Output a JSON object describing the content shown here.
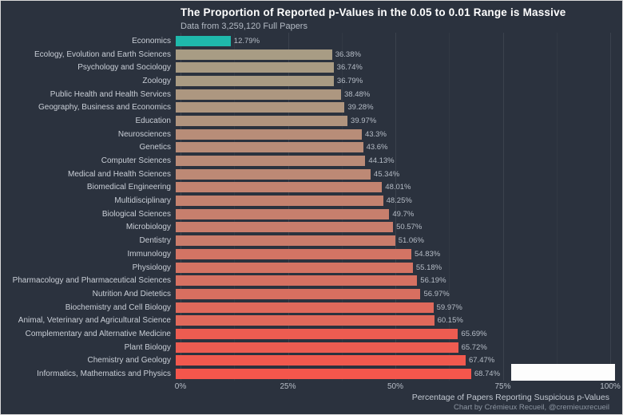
{
  "title": "The Proportion of Reported p-Values in the 0.05 to 0.01 Range is Massive",
  "subtitle": "Data from 3,259,120 Full Papers",
  "caption": "Chart by Crémieux Recueil, @cremieuxrecueil",
  "axis": {
    "label": "Percentage of Papers Reporting Suspicious p-Values",
    "ticks": [
      "0%",
      "25%",
      "50%",
      "75%",
      "100%"
    ]
  },
  "colors": {
    "background": "#2b323e",
    "highlight_teal": "#1fb9ac",
    "bar_gradient_low": "#a89c84",
    "bar_gradient_high": "#f4564c",
    "text_primary": "#ffffff",
    "text_secondary": "#b6bdc7"
  },
  "chart_data": {
    "type": "bar",
    "orientation": "horizontal",
    "title": "The Proportion of Reported p-Values in the 0.05 to 0.01 Range is Massive",
    "subtitle": "Data from 3,259,120 Full Papers",
    "xlabel": "Percentage of Papers Reporting Suspicious p-Values",
    "ylabel": "",
    "xlim": [
      0,
      100
    ],
    "grid": true,
    "categories": [
      "Economics",
      "Ecology, Evolution and Earth Sciences",
      "Psychology and Sociology",
      "Zoology",
      "Public Health and Health Services",
      "Geography, Business and Economics",
      "Education",
      "Neurosciences",
      "Genetics",
      "Computer Sciences",
      "Medical and Health Sciences",
      "Biomedical Engineering",
      "Multidisciplinary",
      "Biological Sciences",
      "Microbiology",
      "Dentistry",
      "Immunology",
      "Physiology",
      "Pharmacology and Pharmaceutical Sciences",
      "Nutrition And Dietetics",
      "Biochemistry and Cell Biology",
      "Animal, Veterinary and Agricultural Science",
      "Complementary and Alternative Medicine",
      "Plant Biology",
      "Chemistry and Geology",
      "Informatics, Mathematics and Physics"
    ],
    "values": [
      12.79,
      36.38,
      36.74,
      36.79,
      38.48,
      39.28,
      39.97,
      43.3,
      43.6,
      44.13,
      45.34,
      48.01,
      48.25,
      49.7,
      50.57,
      51.06,
      54.83,
      55.18,
      56.19,
      56.97,
      59.97,
      60.15,
      65.69,
      65.72,
      67.47,
      68.74
    ],
    "value_labels": [
      "12.79%",
      "36.38%",
      "36.74%",
      "36.79%",
      "38.48%",
      "39.28%",
      "39.97%",
      "43.3%",
      "43.6%",
      "44.13%",
      "45.34%",
      "48.01%",
      "48.25%",
      "49.7%",
      "50.57%",
      "51.06%",
      "54.83%",
      "55.18%",
      "56.19%",
      "56.97%",
      "59.97%",
      "60.15%",
      "65.69%",
      "65.72%",
      "67.47%",
      "68.74%"
    ],
    "bar_colors": [
      "#1fb9ac",
      "#a89c84",
      "#a99b83",
      "#a99b83",
      "#ad9780",
      "#af967f",
      "#b0947e",
      "#b88d78",
      "#b98c78",
      "#ba8b77",
      "#bd8975",
      "#c38370",
      "#c4826f",
      "#c77f6d",
      "#c97d6c",
      "#ca7c6b",
      "#d37464",
      "#d47363",
      "#d67162",
      "#d86f60",
      "#df695b",
      "#e0695b",
      "#ed5c51",
      "#ed5c51",
      "#f1594e",
      "#f4564c"
    ]
  }
}
